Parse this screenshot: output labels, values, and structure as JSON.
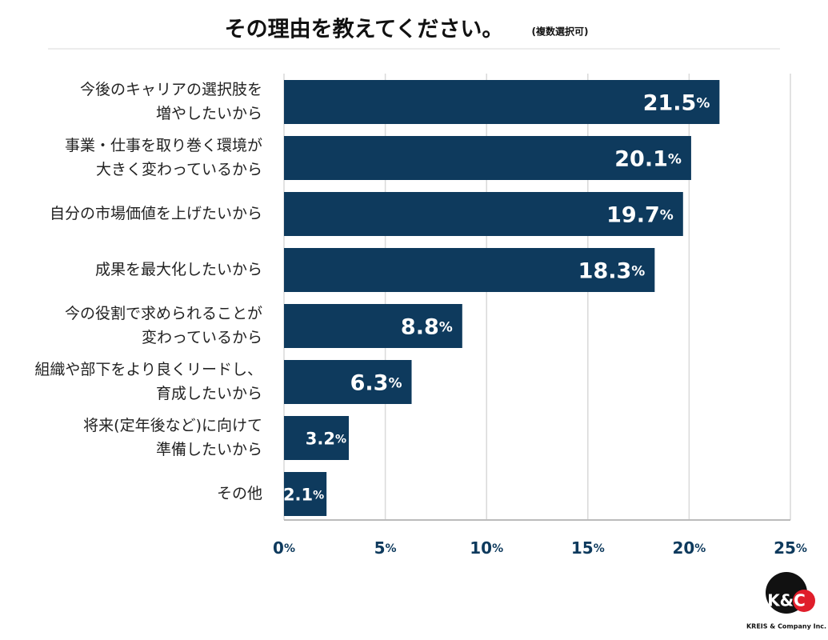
{
  "chart_data": {
    "type": "bar",
    "orientation": "horizontal",
    "title": "その理由を教えてください。",
    "subtitle": "(複数選択可)",
    "categories": [
      [
        "今後のキャリアの選択肢を",
        "増やしたいから"
      ],
      [
        "事業・仕事を取り巻く環境が",
        "大きく変わっているから"
      ],
      [
        "自分の市場価値を上げたいから"
      ],
      [
        "成果を最大化したいから"
      ],
      [
        "今の役割で求められることが",
        "変わっているから"
      ],
      [
        "組織や部下をより良くリードし、",
        "育成したいから"
      ],
      [
        "将来(定年後など)に向けて",
        "準備したいから"
      ],
      [
        "その他"
      ]
    ],
    "values": [
      21.5,
      20.1,
      19.7,
      18.3,
      8.8,
      6.3,
      3.2,
      2.1
    ],
    "value_labels": [
      "21.5%",
      "20.1%",
      "19.7%",
      "18.3%",
      "8.8%",
      "6.3%",
      "3.2%",
      "2.1%"
    ],
    "color": "#0e3a5d",
    "xlim": [
      0,
      25
    ],
    "xticks": [
      {
        "value": 0,
        "label": "0%"
      },
      {
        "value": 5,
        "label": "5%"
      },
      {
        "value": 10,
        "label": "10%"
      },
      {
        "value": 15,
        "label": "15%"
      },
      {
        "value": 20,
        "label": "20%"
      },
      {
        "value": 25,
        "label": "25%"
      }
    ],
    "grid": true
  },
  "logo": {
    "mark": "K&C",
    "name": "KREIS & Company Inc."
  }
}
